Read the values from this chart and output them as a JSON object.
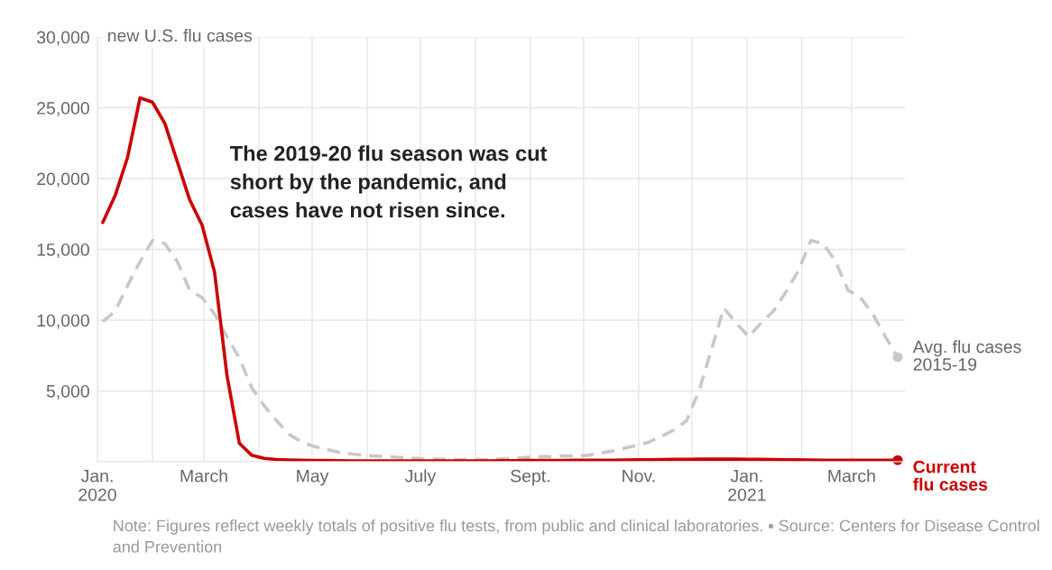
{
  "chart_data": {
    "type": "line",
    "ylabel": "new U.S. flu cases",
    "x": [
      "2020-01-04",
      "2020-01-11",
      "2020-01-18",
      "2020-01-25",
      "2020-02-01",
      "2020-02-08",
      "2020-02-15",
      "2020-02-22",
      "2020-02-29",
      "2020-03-07",
      "2020-03-14",
      "2020-03-21",
      "2020-03-28",
      "2020-04-04",
      "2020-04-11",
      "2020-04-18",
      "2020-04-25",
      "2020-05-02",
      "2020-05-09",
      "2020-05-16",
      "2020-05-23",
      "2020-05-30",
      "2020-06-06",
      "2020-06-13",
      "2020-06-20",
      "2020-06-27",
      "2020-07-04",
      "2020-07-11",
      "2020-07-18",
      "2020-07-25",
      "2020-08-01",
      "2020-08-08",
      "2020-08-15",
      "2020-08-22",
      "2020-08-29",
      "2020-09-05",
      "2020-09-12",
      "2020-09-19",
      "2020-09-26",
      "2020-10-03",
      "2020-10-10",
      "2020-10-17",
      "2020-10-24",
      "2020-10-31",
      "2020-11-07",
      "2020-11-14",
      "2020-11-21",
      "2020-11-28",
      "2020-12-05",
      "2020-12-12",
      "2020-12-19",
      "2020-12-26",
      "2021-01-02",
      "2021-01-09",
      "2021-01-16",
      "2021-01-23",
      "2021-01-30",
      "2021-02-06",
      "2021-02-13",
      "2021-02-20",
      "2021-02-27",
      "2021-03-06",
      "2021-03-13",
      "2021-03-20",
      "2021-03-27"
    ],
    "series": [
      {
        "name": "Avg. flu cases\n2015-19",
        "color": "#c8c8c8",
        "line_style": "dashed",
        "values": [
          9890,
          10640,
          12440,
          14140,
          15620,
          15410,
          14140,
          12120,
          11590,
          10430,
          8830,
          7320,
          5220,
          3950,
          2890,
          1930,
          1400,
          1080,
          870,
          660,
          550,
          450,
          400,
          350,
          300,
          250,
          200,
          180,
          150,
          150,
          150,
          150,
          200,
          250,
          300,
          350,
          350,
          400,
          400,
          450,
          600,
          750,
          950,
          1150,
          1400,
          1800,
          2250,
          2890,
          5010,
          7900,
          10850,
          9800,
          8830,
          9800,
          10640,
          12000,
          13500,
          15620,
          15410,
          14140,
          12120,
          11590,
          10430,
          8830,
          7390
        ]
      },
      {
        "name": "Current\nflu cases",
        "color": "#cc0000",
        "line_style": "solid",
        "values": [
          16900,
          18800,
          21500,
          25700,
          25400,
          23900,
          21200,
          18500,
          16700,
          13400,
          6100,
          1300,
          450,
          230,
          150,
          120,
          100,
          90,
          80,
          70,
          60,
          50,
          50,
          50,
          50,
          50,
          50,
          50,
          50,
          50,
          60,
          60,
          70,
          70,
          80,
          80,
          90,
          90,
          100,
          100,
          110,
          110,
          120,
          130,
          140,
          150,
          160,
          170,
          180,
          180,
          190,
          180,
          170,
          160,
          150,
          140,
          130,
          120,
          110,
          100,
          100,
          100,
          110,
          110,
          110
        ]
      }
    ],
    "xlim": [
      "2020-01-01",
      "2021-03-31"
    ],
    "xticks": [
      {
        "value": "2020-01-01",
        "label": "Jan.\n2020"
      },
      {
        "value": "2020-02-01",
        "label": null
      },
      {
        "value": "2020-03-01",
        "label": "March"
      },
      {
        "value": "2020-04-01",
        "label": null
      },
      {
        "value": "2020-05-01",
        "label": "May"
      },
      {
        "value": "2020-06-01",
        "label": null
      },
      {
        "value": "2020-07-01",
        "label": "July"
      },
      {
        "value": "2020-08-01",
        "label": null
      },
      {
        "value": "2020-09-01",
        "label": "Sept."
      },
      {
        "value": "2020-10-01",
        "label": null
      },
      {
        "value": "2020-11-01",
        "label": "Nov."
      },
      {
        "value": "2020-12-01",
        "label": null
      },
      {
        "value": "2021-01-01",
        "label": "Jan.\n2021"
      },
      {
        "value": "2021-02-01",
        "label": null
      },
      {
        "value": "2021-03-01",
        "label": "March"
      }
    ],
    "ylim": [
      0,
      30000
    ],
    "yticks": [
      {
        "value": 0,
        "label": null
      },
      {
        "value": 5000,
        "label": "5,000"
      },
      {
        "value": 10000,
        "label": "10,000"
      },
      {
        "value": 15000,
        "label": "15,000"
      },
      {
        "value": 20000,
        "label": "20,000"
      },
      {
        "value": 25000,
        "label": "25,000"
      },
      {
        "value": 30000,
        "label": "30,000"
      }
    ],
    "grid": true,
    "annotations": [
      "The 2019-20 flu season was cut\nshort by the pandemic, and\ncases have not risen since.",
      "Note: Figures reflect weekly totals of positive flu tests, from public and clinical laboratories. ▪ Source: Centers for Disease Control and Prevention"
    ]
  }
}
